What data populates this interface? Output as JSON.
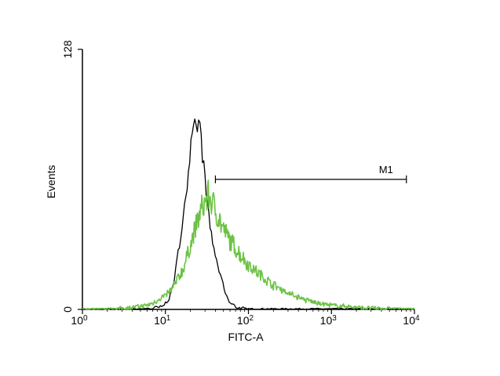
{
  "chart_data": {
    "type": "line",
    "title": "",
    "xlabel": "FITC-A",
    "ylabel": "Events",
    "xscale": "log",
    "xlim": [
      1,
      10000
    ],
    "ylim": [
      0,
      128
    ],
    "grid": false,
    "legend": "none",
    "x_ticks": [
      {
        "value": 1,
        "base": "10",
        "exp": "0"
      },
      {
        "value": 10,
        "base": "10",
        "exp": "1"
      },
      {
        "value": 100,
        "base": "10",
        "exp": "2"
      },
      {
        "value": 1000,
        "base": "10",
        "exp": "3"
      },
      {
        "value": 10000,
        "base": "10",
        "exp": "4"
      }
    ],
    "y_ticks": [
      {
        "value": 0,
        "label": "0"
      },
      {
        "value": 128,
        "label": "128"
      }
    ],
    "series": [
      {
        "color": "#000000",
        "points": [
          [
            1,
            0
          ],
          [
            5,
            0
          ],
          [
            9,
            1
          ],
          [
            11,
            5
          ],
          [
            13,
            16
          ],
          [
            15,
            34
          ],
          [
            17,
            52
          ],
          [
            19,
            66
          ],
          [
            20,
            78
          ],
          [
            22,
            88
          ],
          [
            24,
            90
          ],
          [
            25,
            94
          ],
          [
            27,
            84
          ],
          [
            29,
            70
          ],
          [
            31,
            58
          ],
          [
            33,
            46
          ],
          [
            36,
            36
          ],
          [
            40,
            26
          ],
          [
            45,
            18
          ],
          [
            50,
            11
          ],
          [
            55,
            6
          ],
          [
            60,
            3
          ],
          [
            70,
            1.5
          ],
          [
            80,
            0.5
          ],
          [
            100,
            0
          ],
          [
            10000,
            0
          ]
        ]
      },
      {
        "color": "#6cc244",
        "points": [
          [
            1,
            0
          ],
          [
            2,
            0
          ],
          [
            3,
            0.5
          ],
          [
            4,
            1
          ],
          [
            5,
            1.5
          ],
          [
            6,
            2
          ],
          [
            7,
            3
          ],
          [
            8,
            4.5
          ],
          [
            10,
            7
          ],
          [
            12,
            10
          ],
          [
            14,
            15
          ],
          [
            16,
            19
          ],
          [
            18,
            25
          ],
          [
            20,
            32
          ],
          [
            23,
            40
          ],
          [
            26,
            47
          ],
          [
            30,
            53
          ],
          [
            33,
            56
          ],
          [
            36,
            53
          ],
          [
            40,
            49
          ],
          [
            45,
            44
          ],
          [
            50,
            39
          ],
          [
            60,
            34
          ],
          [
            70,
            30
          ],
          [
            80,
            27
          ],
          [
            100,
            22
          ],
          [
            130,
            18
          ],
          [
            160,
            15
          ],
          [
            200,
            12
          ],
          [
            250,
            10
          ],
          [
            300,
            8
          ],
          [
            400,
            6
          ],
          [
            500,
            4.5
          ],
          [
            700,
            3
          ],
          [
            1000,
            2
          ],
          [
            1500,
            1.5
          ],
          [
            2000,
            1
          ],
          [
            3000,
            0.6
          ],
          [
            5000,
            0.3
          ],
          [
            10000,
            0
          ]
        ]
      }
    ],
    "annotations": [
      {
        "label": "M1",
        "x_start": 40,
        "x_end": 8000,
        "y": 64
      }
    ]
  }
}
